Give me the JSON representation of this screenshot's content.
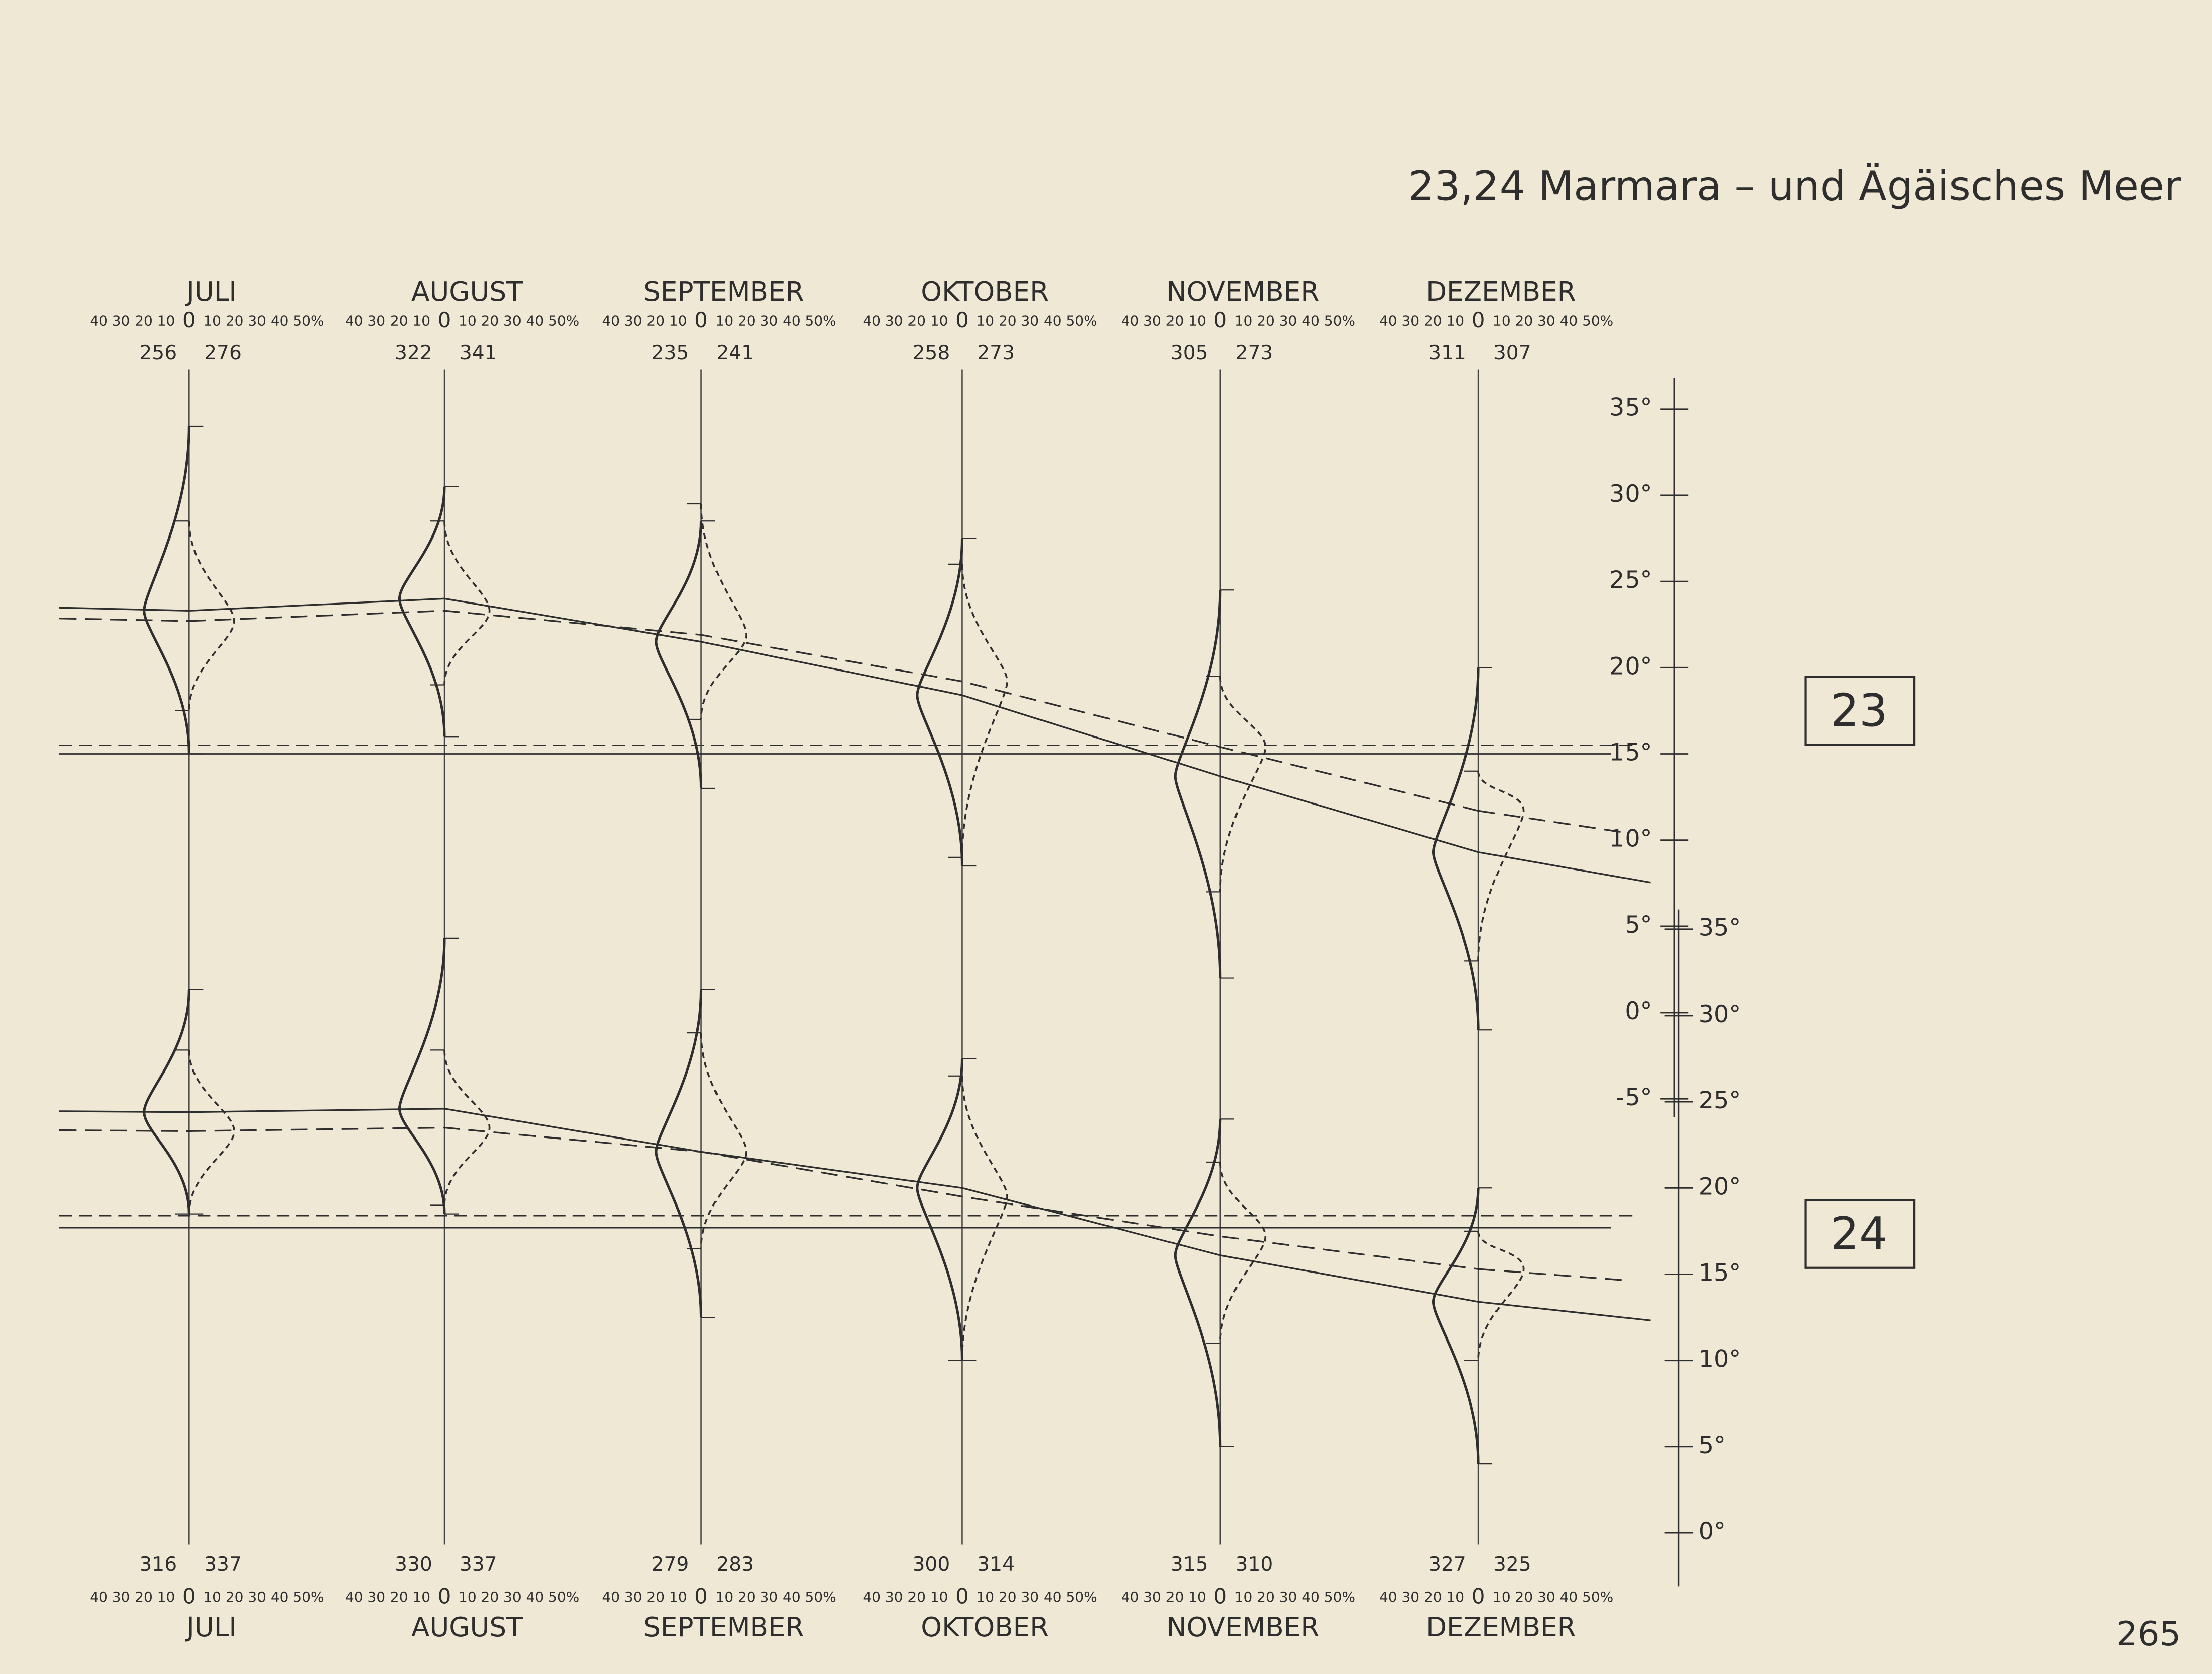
{
  "title": "23,24 Marmara – und Ägäisches Meer",
  "pct_scale": {
    "left": "40 30 20 10",
    "zero": "0",
    "right": "10 20 30 40 50%"
  },
  "top_months": [
    {
      "name": "JULI",
      "counts": [
        256,
        276
      ]
    },
    {
      "name": "AUGUST",
      "counts": [
        322,
        341
      ]
    },
    {
      "name": "SEPTEMBER",
      "counts": [
        235,
        241
      ]
    },
    {
      "name": "OKTOBER",
      "counts": [
        258,
        273
      ]
    },
    {
      "name": "NOVEMBER",
      "counts": [
        305,
        273
      ]
    },
    {
      "name": "DEZEMBER",
      "counts": [
        311,
        307
      ]
    }
  ],
  "bottom_months": [
    {
      "name": "JULI",
      "counts": [
        316,
        337
      ]
    },
    {
      "name": "AUGUST",
      "counts": [
        330,
        337
      ]
    },
    {
      "name": "SEPTEMBER",
      "counts": [
        279,
        283
      ]
    },
    {
      "name": "OKTOBER",
      "counts": [
        300,
        314
      ]
    },
    {
      "name": "NOVEMBER",
      "counts": [
        315,
        310
      ]
    },
    {
      "name": "DEZEMBER",
      "counts": [
        327,
        325
      ]
    }
  ],
  "panels": [
    {
      "label": "23",
      "ylim": [
        -7,
        36
      ],
      "yticks": [
        {
          "value": 35,
          "label": "35°"
        },
        {
          "value": 30,
          "label": "30°"
        },
        {
          "value": 25,
          "label": "25°"
        },
        {
          "value": 20,
          "label": "20°"
        },
        {
          "value": 15,
          "label": "15°"
        },
        {
          "value": 10,
          "label": "10°"
        },
        {
          "value": 5,
          "label": "5°"
        },
        {
          "value": 0,
          "label": "0°"
        },
        {
          "value": -5,
          "label": "-5°"
        }
      ],
      "air": [
        23.3,
        24.0,
        21.5,
        18.4,
        13.7,
        9.3
      ],
      "water": [
        22.7,
        23.3,
        21.9,
        19.2,
        15.4,
        11.7
      ],
      "air_mean": 15.0,
      "water_mean": 15.5,
      "air_range": [
        [
          15,
          34
        ],
        [
          16,
          30.5
        ],
        [
          13,
          28.5
        ],
        [
          8.5,
          27.5
        ],
        [
          2,
          24.5
        ],
        [
          -1,
          20
        ]
      ],
      "water_range": [
        [
          17.5,
          28.5
        ],
        [
          19,
          28.5
        ],
        [
          17,
          29.5
        ],
        [
          9,
          26
        ],
        [
          7,
          19.5
        ],
        [
          3,
          14
        ]
      ]
    },
    {
      "label": "24",
      "ylim": [
        -3,
        37
      ],
      "yticks": [
        {
          "value": 35,
          "label": "35°"
        },
        {
          "value": 30,
          "label": "30°"
        },
        {
          "value": 25,
          "label": "25°"
        },
        {
          "value": 20,
          "label": "20°"
        },
        {
          "value": 15,
          "label": "15°"
        },
        {
          "value": 10,
          "label": "10°"
        },
        {
          "value": 5,
          "label": "5°"
        },
        {
          "value": 0,
          "label": "0°"
        }
      ],
      "air": [
        24.4,
        24.6,
        22.1,
        20.0,
        16.1,
        13.4
      ],
      "water": [
        23.3,
        23.5,
        22.1,
        19.5,
        17.2,
        15.3
      ],
      "air_mean": 17.7,
      "water_mean": 18.4,
      "air_range": [
        [
          18.5,
          31.5
        ],
        [
          18.5,
          34.5
        ],
        [
          12.5,
          31.5
        ],
        [
          10,
          27.5
        ],
        [
          5,
          24
        ],
        [
          4,
          20
        ]
      ],
      "water_range": [
        [
          18.5,
          28
        ],
        [
          19,
          28
        ],
        [
          16.5,
          29
        ],
        [
          10,
          26.5
        ],
        [
          11,
          21.5
        ],
        [
          10,
          17.5
        ]
      ]
    }
  ],
  "page_number": "265"
}
